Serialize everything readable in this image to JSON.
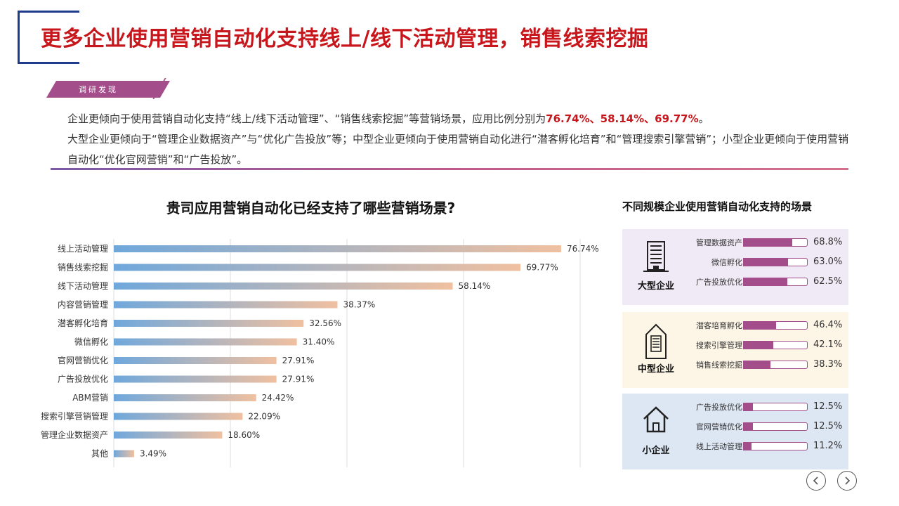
{
  "title": "更多企业使用营销自动化支持线上/线下活动管理，销售线索挖掘",
  "tag": "调研发现",
  "findings": {
    "line1_prefix": "企业更倾向于使用营销自动化支持“线上/线下活动管理”、“销售线索挖掘”等营销场景，应用比例分别为",
    "pct1": "76.74%",
    "sep1": "、",
    "pct2": "58.14%",
    "sep2": "、",
    "pct3": "69.77%",
    "end1": "。",
    "line2": "大型企业更倾向于“管理企业数据资产”与“优化广告投放”等；中型企业更倾向于使用营销自动化进行“潜客孵化培育”和“管理搜索引擎营销”；小型企业更倾向于使用营销自动化“优化官网营销”和“广告投放”。"
  },
  "chart_data": [
    {
      "type": "bar",
      "orientation": "horizontal",
      "title": "贵司应用营销自动化已经支持了哪些营销场景?",
      "categories": [
        "线上活动管理",
        "销售线索挖掘",
        "线下活动管理",
        "内容营销管理",
        "潜客孵化培育",
        "微信孵化",
        "官网营销优化",
        "广告投放优化",
        "ABM营销",
        "搜索引擎营销管理",
        "管理企业数据资产",
        "其他"
      ],
      "values": [
        76.74,
        69.77,
        58.14,
        38.37,
        32.56,
        31.4,
        27.91,
        27.91,
        24.42,
        22.09,
        18.6,
        3.49
      ],
      "value_labels": [
        "76.74%",
        "69.77%",
        "58.14%",
        "38.37%",
        "32.56%",
        "31.40%",
        "27.91%",
        "27.91%",
        "24.42%",
        "22.09%",
        "18.60%",
        "3.49%"
      ],
      "xlim": [
        0,
        80
      ],
      "grid": true,
      "colors": {
        "start": "#6fa8dc",
        "end": "#f0c0a0"
      }
    },
    {
      "type": "bar",
      "orientation": "horizontal",
      "title": "不同规模企业使用营销自动化支持的场景",
      "groups": [
        {
          "name": "大型企业",
          "icon": "building-icon",
          "background": "#efeaf5",
          "items": [
            {
              "label": "管理数据资产",
              "value": 68.8,
              "display": "68.8%"
            },
            {
              "label": "微信孵化",
              "value": 63.0,
              "display": "63.0%"
            },
            {
              "label": "广告投放优化",
              "value": 62.5,
              "display": "62.5%"
            }
          ]
        },
        {
          "name": "中型企业",
          "icon": "tower-icon",
          "background": "#fdf5e6",
          "items": [
            {
              "label": "潜客培育孵化",
              "value": 46.4,
              "display": "46.4%"
            },
            {
              "label": "搜索引擎管理",
              "value": 42.1,
              "display": "42.1%"
            },
            {
              "label": "销售线索挖掘",
              "value": 38.3,
              "display": "38.3%"
            }
          ]
        },
        {
          "name": "小企业",
          "icon": "house-icon",
          "background": "#dde7f4",
          "items": [
            {
              "label": "广告投放优化",
              "value": 12.5,
              "display": "12.5%"
            },
            {
              "label": "官网营销优化",
              "value": 12.5,
              "display": "12.5%"
            },
            {
              "label": "线上活动管理",
              "value": 11.2,
              "display": "11.2%"
            }
          ]
        }
      ]
    }
  ],
  "accent": "#c8161d",
  "brand_purple": "#a34d8a",
  "nav": {
    "prev_icon": "chevron-left-icon",
    "next_icon": "chevron-right-icon"
  }
}
